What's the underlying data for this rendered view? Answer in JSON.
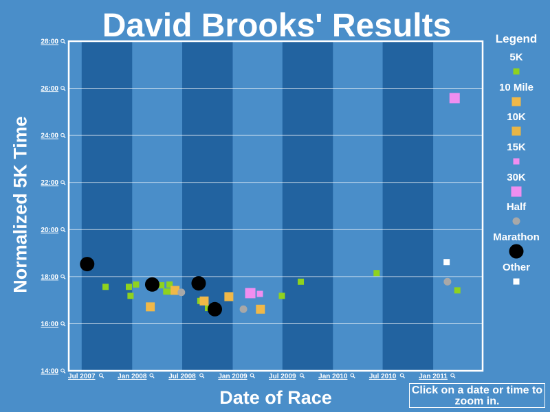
{
  "chart_data": {
    "type": "scatter",
    "title": "David Brooks' Results",
    "xlabel": "Date of Race",
    "ylabel": "Normalized 5K Time",
    "x_ticks": [
      "Jul 2007",
      "Jan 2008",
      "Jul 2008",
      "Jan 2009",
      "Jul 2009",
      "Jan 2010",
      "Jul 2010",
      "Jan 2011"
    ],
    "y_ticks": [
      "14:00",
      "16:00",
      "18:00",
      "20:00",
      "22:00",
      "24:00",
      "26:00",
      "28:00"
    ],
    "xlim": [
      "2007-05-15",
      "2011-06-30"
    ],
    "ylim": [
      "14:00",
      "28:00"
    ],
    "grid": "horizontal",
    "legend_title": "Legend",
    "legend_position": "right",
    "hint": "Click on a date or time to zoom in.",
    "series": [
      {
        "name": "5K",
        "marker": "square-small",
        "color": "#8fd21e",
        "points": [
          {
            "x": "2007-09-26",
            "y": "17:34"
          },
          {
            "x": "2007-12-20",
            "y": "17:34"
          },
          {
            "x": "2007-12-26",
            "y": "17:11"
          },
          {
            "x": "2008-01-15",
            "y": "17:40"
          },
          {
            "x": "2008-04-16",
            "y": "17:38"
          },
          {
            "x": "2008-05-04",
            "y": "17:22"
          },
          {
            "x": "2008-05-16",
            "y": "17:40"
          },
          {
            "x": "2008-05-22",
            "y": "17:22"
          },
          {
            "x": "2008-09-05",
            "y": "16:58"
          },
          {
            "x": "2008-10-03",
            "y": "16:40"
          },
          {
            "x": "2009-06-29",
            "y": "17:11"
          },
          {
            "x": "2009-09-06",
            "y": "17:47"
          },
          {
            "x": "2010-06-09",
            "y": "18:09"
          },
          {
            "x": "2011-03-30",
            "y": "17:25"
          }
        ]
      },
      {
        "name": "10 Mile",
        "marker": "square-medium",
        "color": "#f0b848",
        "points": [
          {
            "x": "2008-03-07",
            "y": "16:43"
          },
          {
            "x": "2008-06-05",
            "y": "17:25"
          },
          {
            "x": "2008-09-19",
            "y": "16:58"
          },
          {
            "x": "2008-12-18",
            "y": "17:09"
          },
          {
            "x": "2009-04-12",
            "y": "16:37"
          }
        ]
      },
      {
        "name": "10K",
        "marker": "square-medium",
        "color": "#e8b545",
        "points": []
      },
      {
        "name": "15K",
        "marker": "square-small",
        "color": "#f08ef0",
        "points": [
          {
            "x": "2009-04-10",
            "y": "17:16"
          }
        ]
      },
      {
        "name": "30K",
        "marker": "square-large",
        "color": "#f08ef0",
        "points": [
          {
            "x": "2009-03-06",
            "y": "17:18"
          },
          {
            "x": "2011-03-20",
            "y": "25:35"
          }
        ]
      },
      {
        "name": "Half",
        "marker": "circle-small",
        "color": "#a8a8a8",
        "points": [
          {
            "x": "2008-06-28",
            "y": "17:20"
          },
          {
            "x": "2009-02-09",
            "y": "16:37"
          },
          {
            "x": "2011-02-22",
            "y": "17:47"
          }
        ]
      },
      {
        "name": "Marathon",
        "marker": "circle-large",
        "color": "#000000",
        "points": [
          {
            "x": "2007-07-21",
            "y": "18:32"
          },
          {
            "x": "2008-03-14",
            "y": "17:40"
          },
          {
            "x": "2008-08-30",
            "y": "17:43"
          },
          {
            "x": "2008-10-28",
            "y": "16:37"
          }
        ]
      },
      {
        "name": "Other",
        "marker": "square-small",
        "color": "#ffffff",
        "points": [
          {
            "x": "2011-02-19",
            "y": "18:37"
          }
        ]
      }
    ]
  }
}
